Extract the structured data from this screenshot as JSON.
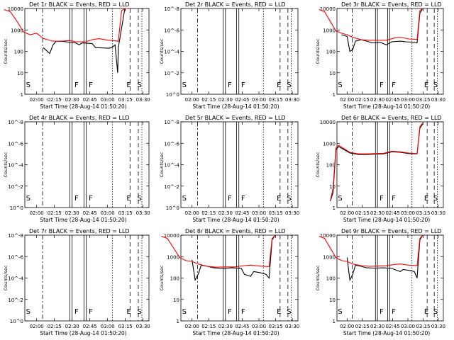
{
  "chart_data": [
    {
      "type": "line",
      "title": "Det 1r BLACK = Events, RED = LLD",
      "xlabel": "Start Time (28-Aug-14 01:50:20)",
      "ylabel": "Counts/sec",
      "y_scale": "log",
      "x_ticks": [
        "02:00",
        "02:15",
        "02:30",
        "02:45",
        "03:00",
        "03:15",
        "03:30"
      ],
      "y_ticks": [
        "1",
        "10",
        "100",
        "1000",
        "10000"
      ],
      "ylim": [
        1,
        10000
      ],
      "xlim_minutes": [
        -10,
        30
      ],
      "markers": [
        "S",
        "F",
        "F",
        "E",
        "S"
      ],
      "series": [
        {
          "color": "#000000",
          "points": [
            [
              2,
              150
            ],
            [
              4,
              80
            ],
            [
              5,
              200
            ],
            [
              6,
              300
            ],
            [
              8,
              290
            ],
            [
              10,
              270
            ],
            [
              12,
              250
            ],
            [
              13,
              200
            ],
            [
              14,
              250
            ],
            [
              17,
              230
            ],
            [
              18,
              150
            ],
            [
              22,
              140
            ],
            [
              23,
              150
            ],
            [
              24,
              200
            ],
            [
              24.8,
              10
            ],
            [
              25,
              150
            ],
            [
              27,
              10000
            ],
            [
              28,
              10000
            ]
          ]
        },
        {
          "color": "#ff0000",
          "points": [
            [
              -10,
              9000
            ],
            [
              -8,
              7000
            ],
            [
              -6,
              2500
            ],
            [
              -4,
              800
            ],
            [
              -2,
              600
            ],
            [
              0,
              700
            ],
            [
              2,
              400
            ],
            [
              5,
              300
            ],
            [
              8,
              300
            ],
            [
              10,
              320
            ],
            [
              12,
              280
            ],
            [
              15,
              280
            ],
            [
              17,
              350
            ],
            [
              19,
              390
            ],
            [
              22,
              330
            ],
            [
              25,
              300
            ],
            [
              26,
              8000
            ],
            [
              27,
              12000
            ],
            [
              28,
              12000
            ]
          ]
        }
      ]
    },
    {
      "type": "line",
      "title": "Det 2r BLACK = Events, RED = LLD",
      "xlabel": "Start Time (28-Aug-14 01:50:20)",
      "ylabel": "Counts/sec",
      "y_scale": "log",
      "x_ticks": [
        "02:00",
        "02:15",
        "02:30",
        "02:45",
        "03:00",
        "03:15",
        "03:30"
      ],
      "y_ticks": [
        "10^0",
        "10^-2",
        "10^-4",
        "10^-6",
        "10^-8"
      ],
      "markers": [
        "S",
        "F",
        "F",
        "E",
        "S"
      ],
      "series": []
    },
    {
      "type": "line",
      "title": "Det 3r BLACK = Events, RED = LLD",
      "xlabel": "Start Time (28-Aug-14 01:50:20)",
      "ylabel": "Counts/sec",
      "y_scale": "log",
      "x_ticks": [
        "02:00",
        "02:15",
        "02:30",
        "02:45",
        "03:00",
        "03:15",
        "03:30"
      ],
      "y_ticks": [
        "1",
        "10",
        "100",
        "1000",
        "10000"
      ],
      "ylim": [
        1,
        10000
      ],
      "markers": [
        "S",
        "F",
        "F",
        "E",
        "S"
      ],
      "series": [
        {
          "color": "#000000",
          "points": [
            [
              -2,
              600
            ],
            [
              0,
              500
            ],
            [
              1,
              100
            ],
            [
              2,
              120
            ],
            [
              3,
              300
            ],
            [
              5,
              350
            ],
            [
              7,
              300
            ],
            [
              9,
              250
            ],
            [
              12,
              260
            ],
            [
              14,
              200
            ],
            [
              16,
              280
            ],
            [
              19,
              300
            ],
            [
              21,
              280
            ],
            [
              23,
              270
            ],
            [
              25,
              250
            ],
            [
              26,
              6000
            ],
            [
              27,
              10000
            ]
          ]
        },
        {
          "color": "#ff0000",
          "points": [
            [
              -10,
              9000
            ],
            [
              -8,
              7000
            ],
            [
              -6,
              2500
            ],
            [
              -4,
              900
            ],
            [
              -2,
              700
            ],
            [
              0,
              600
            ],
            [
              2,
              450
            ],
            [
              5,
              350
            ],
            [
              8,
              330
            ],
            [
              11,
              330
            ],
            [
              14,
              330
            ],
            [
              17,
              420
            ],
            [
              19,
              460
            ],
            [
              22,
              380
            ],
            [
              25,
              360
            ],
            [
              26,
              8000
            ],
            [
              27,
              12000
            ]
          ]
        }
      ]
    },
    {
      "type": "line",
      "title": "Det 4r BLACK = Events, RED = LLD",
      "xlabel": "Start Time (28-Aug-14 01:50:20)",
      "ylabel": "Counts/sec",
      "y_scale": "log",
      "x_ticks": [
        "02:00",
        "02:15",
        "02:30",
        "02:45",
        "03:00",
        "03:15",
        "03:30"
      ],
      "y_ticks": [
        "10^0",
        "10^-2",
        "10^-4",
        "10^-6",
        "10^-8"
      ],
      "markers": [
        "S",
        "F",
        "F",
        "E",
        "S"
      ],
      "series": []
    },
    {
      "type": "line",
      "title": "Det 5r BLACK = Events, RED = LLD",
      "xlabel": "Start Time (28-Aug-14 01:50:20)",
      "ylabel": "Counts/sec",
      "y_scale": "log",
      "x_ticks": [
        "02:00",
        "02:15",
        "02:30",
        "02:45",
        "03:00",
        "03:15",
        "03:30"
      ],
      "y_ticks": [
        "10^0",
        "10^-2",
        "10^-4",
        "10^-6",
        "10^-8"
      ],
      "markers": [
        "S",
        "F",
        "F",
        "E",
        "S"
      ],
      "series": []
    },
    {
      "type": "line",
      "title": "Det 6r BLACK = Events, RED = LLD",
      "xlabel": "Start Time (28-Aug-14 01:50:20)",
      "ylabel": "Counts/sec",
      "y_scale": "log",
      "x_ticks": [
        "02:00",
        "02:15",
        "02:30",
        "02:45",
        "03:00",
        "03:15",
        "03:30"
      ],
      "y_ticks": [
        "1",
        "10",
        "100",
        "1000",
        "10000"
      ],
      "ylim": [
        1,
        10000
      ],
      "markers": [
        "S",
        "F",
        "F",
        "E",
        "S"
      ],
      "series": [
        {
          "color": "#000000",
          "points": [
            [
              -6,
              2
            ],
            [
              -5,
              5
            ],
            [
              -4,
              500
            ],
            [
              -3,
              700
            ],
            [
              -1,
              500
            ],
            [
              1,
              350
            ],
            [
              4,
              300
            ],
            [
              7,
              300
            ],
            [
              10,
              310
            ],
            [
              13,
              320
            ],
            [
              16,
              400
            ],
            [
              19,
              380
            ],
            [
              22,
              330
            ],
            [
              25,
              320
            ],
            [
              26,
              5000
            ],
            [
              27,
              8000
            ]
          ]
        },
        {
          "color": "#ff0000",
          "points": [
            [
              -6,
              2
            ],
            [
              -5,
              8
            ],
            [
              -4,
              600
            ],
            [
              -3,
              800
            ],
            [
              -1,
              550
            ],
            [
              1,
              380
            ],
            [
              4,
              320
            ],
            [
              7,
              320
            ],
            [
              10,
              330
            ],
            [
              13,
              340
            ],
            [
              16,
              420
            ],
            [
              19,
              400
            ],
            [
              22,
              350
            ],
            [
              25,
              330
            ],
            [
              26,
              6000
            ],
            [
              27,
              9000
            ]
          ]
        }
      ]
    },
    {
      "type": "line",
      "title": "Det 7r BLACK = Events, RED = LLD",
      "xlabel": "Start Time (28-Aug-14 01:50:20)",
      "ylabel": "Counts/sec",
      "y_scale": "log",
      "x_ticks": [
        "02:00",
        "02:15",
        "02:30",
        "02:45",
        "03:00",
        "03:15",
        "03:30"
      ],
      "y_ticks": [
        "10^0",
        "10^-2",
        "10^-4",
        "10^-6",
        "10^-8"
      ],
      "markers": [
        "S",
        "F",
        "F",
        "E",
        "S"
      ],
      "series": []
    },
    {
      "type": "line",
      "title": "Det 8r BLACK = Events, RED = LLD",
      "xlabel": "Start Time (28-Aug-14 01:50:20)",
      "ylabel": "Counts/sec",
      "y_scale": "log",
      "x_ticks": [
        "02:00",
        "02:15",
        "02:30",
        "02:45",
        "03:00",
        "03:15",
        "03:30"
      ],
      "y_ticks": [
        "1",
        "10",
        "100",
        "1000",
        "10000"
      ],
      "ylim": [
        1,
        10000
      ],
      "markers": [
        "S",
        "F",
        "F",
        "E",
        "S"
      ],
      "series": [
        {
          "color": "#000000",
          "points": [
            [
              0,
              700
            ],
            [
              1,
              80
            ],
            [
              2,
              150
            ],
            [
              3,
              400
            ],
            [
              5,
              350
            ],
            [
              7,
              300
            ],
            [
              10,
              280
            ],
            [
              13,
              300
            ],
            [
              16,
              280
            ],
            [
              17,
              150
            ],
            [
              19,
              120
            ],
            [
              20,
              200
            ],
            [
              22,
              180
            ],
            [
              24,
              150
            ],
            [
              25,
              100
            ],
            [
              26,
              6000
            ],
            [
              27,
              10000
            ]
          ]
        },
        {
          "color": "#ff0000",
          "points": [
            [
              -10,
              9000
            ],
            [
              -8,
              7000
            ],
            [
              -6,
              2500
            ],
            [
              -4,
              900
            ],
            [
              -2,
              650
            ],
            [
              0,
              600
            ],
            [
              2,
              450
            ],
            [
              5,
              350
            ],
            [
              8,
              320
            ],
            [
              11,
              330
            ],
            [
              14,
              330
            ],
            [
              17,
              380
            ],
            [
              19,
              400
            ],
            [
              22,
              360
            ],
            [
              25,
              340
            ],
            [
              26,
              7000
            ],
            [
              27,
              11000
            ]
          ]
        }
      ]
    },
    {
      "type": "line",
      "title": "Det 9r BLACK = Events, RED = LLD",
      "xlabel": "Start Time (28-Aug-14 01:50:20)",
      "ylabel": "Counts/sec",
      "y_scale": "log",
      "x_ticks": [
        "02:00",
        "02:15",
        "02:30",
        "02:45",
        "03:00",
        "03:15",
        "03:30"
      ],
      "y_ticks": [
        "1",
        "10",
        "100",
        "1000",
        "10000"
      ],
      "ylim": [
        1,
        10000
      ],
      "markers": [
        "S",
        "F",
        "F",
        "E",
        "S"
      ],
      "series": [
        {
          "color": "#000000",
          "points": [
            [
              0,
              900
            ],
            [
              1,
              80
            ],
            [
              2,
              150
            ],
            [
              3,
              400
            ],
            [
              5,
              350
            ],
            [
              7,
              300
            ],
            [
              10,
              290
            ],
            [
              13,
              300
            ],
            [
              16,
              280
            ],
            [
              17,
              250
            ],
            [
              19,
              200
            ],
            [
              20,
              250
            ],
            [
              22,
              230
            ],
            [
              24,
              200
            ],
            [
              25,
              100
            ],
            [
              26,
              6000
            ],
            [
              27,
              10000
            ]
          ]
        },
        {
          "color": "#ff0000",
          "points": [
            [
              -10,
              9000
            ],
            [
              -8,
              7000
            ],
            [
              -6,
              2500
            ],
            [
              -4,
              900
            ],
            [
              -2,
              650
            ],
            [
              0,
              600
            ],
            [
              2,
              450
            ],
            [
              5,
              380
            ],
            [
              8,
              350
            ],
            [
              11,
              360
            ],
            [
              14,
              370
            ],
            [
              17,
              430
            ],
            [
              19,
              450
            ],
            [
              22,
              400
            ],
            [
              25,
              380
            ],
            [
              26,
              7000
            ],
            [
              27,
              11000
            ]
          ]
        }
      ]
    }
  ]
}
